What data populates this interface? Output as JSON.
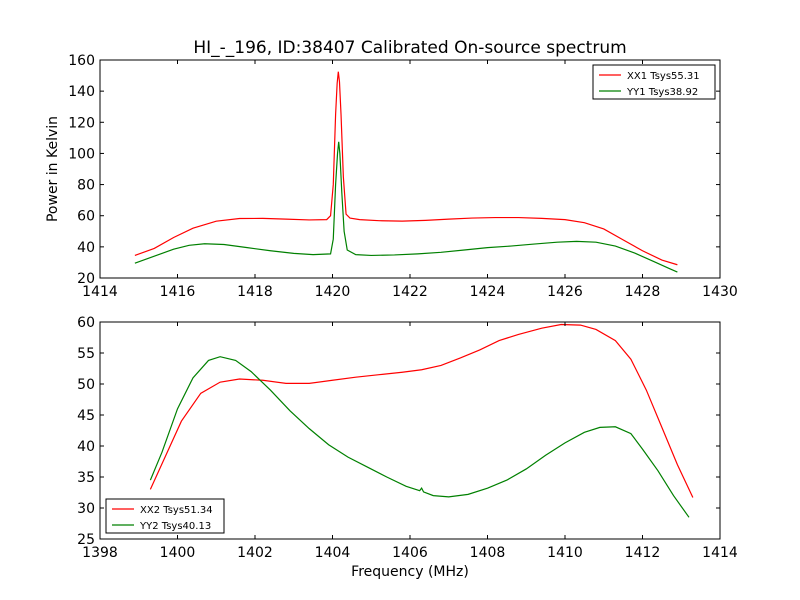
{
  "chart_data": [
    {
      "type": "line",
      "title": "HI_-_196, ID:38407 Calibrated On-source spectrum",
      "xlabel": "",
      "ylabel": "Power in Kelvin",
      "xlim": [
        1414,
        1430
      ],
      "ylim": [
        20,
        160
      ],
      "xticks": [
        1414,
        1416,
        1418,
        1420,
        1422,
        1424,
        1426,
        1428,
        1430
      ],
      "yticks": [
        20,
        40,
        60,
        80,
        100,
        120,
        140,
        160
      ],
      "legend_position": "top-right",
      "series": [
        {
          "name": "XX1 Tsys55.31",
          "color": "#ff0000",
          "points": [
            [
              1414.9,
              34.5
            ],
            [
              1415.4,
              39
            ],
            [
              1415.9,
              46
            ],
            [
              1416.4,
              52
            ],
            [
              1417.0,
              56.5
            ],
            [
              1417.6,
              58.2
            ],
            [
              1418.2,
              58.3
            ],
            [
              1418.8,
              57.8
            ],
            [
              1419.4,
              57.3
            ],
            [
              1419.85,
              57.5
            ],
            [
              1419.95,
              60
            ],
            [
              1420.02,
              80
            ],
            [
              1420.08,
              125
            ],
            [
              1420.12,
              145
            ],
            [
              1420.15,
              152.5
            ],
            [
              1420.18,
              146
            ],
            [
              1420.22,
              125
            ],
            [
              1420.28,
              85
            ],
            [
              1420.35,
              61
            ],
            [
              1420.45,
              58.5
            ],
            [
              1420.7,
              57.5
            ],
            [
              1421.2,
              56.8
            ],
            [
              1421.8,
              56.5
            ],
            [
              1422.4,
              57
            ],
            [
              1423.0,
              57.8
            ],
            [
              1423.6,
              58.5
            ],
            [
              1424.2,
              58.8
            ],
            [
              1424.8,
              58.8
            ],
            [
              1425.4,
              58.3
            ],
            [
              1426.0,
              57.5
            ],
            [
              1426.5,
              55.5
            ],
            [
              1427.0,
              51.5
            ],
            [
              1427.5,
              44.5
            ],
            [
              1428.0,
              37.5
            ],
            [
              1428.5,
              31.5
            ],
            [
              1428.9,
              28.5
            ]
          ]
        },
        {
          "name": "YY1 Tsys38.92",
          "color": "#008000",
          "points": [
            [
              1414.9,
              29.5
            ],
            [
              1415.4,
              34
            ],
            [
              1415.9,
              38.5
            ],
            [
              1416.3,
              41
            ],
            [
              1416.7,
              42
            ],
            [
              1417.2,
              41.5
            ],
            [
              1417.8,
              39.5
            ],
            [
              1418.4,
              37.5
            ],
            [
              1419.0,
              35.8
            ],
            [
              1419.5,
              35
            ],
            [
              1419.95,
              35.5
            ],
            [
              1420.02,
              45
            ],
            [
              1420.08,
              80
            ],
            [
              1420.13,
              100
            ],
            [
              1420.16,
              107.5
            ],
            [
              1420.19,
              100
            ],
            [
              1420.24,
              75
            ],
            [
              1420.3,
              50
            ],
            [
              1420.38,
              38
            ],
            [
              1420.6,
              35
            ],
            [
              1421.0,
              34.5
            ],
            [
              1421.6,
              34.8
            ],
            [
              1422.2,
              35.5
            ],
            [
              1422.8,
              36.5
            ],
            [
              1423.4,
              38
            ],
            [
              1424.0,
              39.5
            ],
            [
              1424.6,
              40.5
            ],
            [
              1425.2,
              41.8
            ],
            [
              1425.8,
              43
            ],
            [
              1426.3,
              43.5
            ],
            [
              1426.8,
              43
            ],
            [
              1427.3,
              40.5
            ],
            [
              1427.8,
              36
            ],
            [
              1428.3,
              30.5
            ],
            [
              1428.7,
              26
            ],
            [
              1428.9,
              23.8
            ]
          ]
        }
      ]
    },
    {
      "type": "line",
      "title": "",
      "xlabel": "Frequency (MHz)",
      "ylabel": "",
      "xlim": [
        1398,
        1414
      ],
      "ylim": [
        25,
        60
      ],
      "xticks": [
        1398,
        1400,
        1402,
        1404,
        1406,
        1408,
        1410,
        1412,
        1414
      ],
      "yticks": [
        25,
        30,
        35,
        40,
        45,
        50,
        55,
        60
      ],
      "legend_position": "bottom-left",
      "series": [
        {
          "name": "XX2 Tsys51.34",
          "color": "#ff0000",
          "points": [
            [
              1399.3,
              33
            ],
            [
              1399.7,
              38.5
            ],
            [
              1400.1,
              44
            ],
            [
              1400.6,
              48.5
            ],
            [
              1401.1,
              50.3
            ],
            [
              1401.6,
              50.8
            ],
            [
              1402.2,
              50.6
            ],
            [
              1402.8,
              50.1
            ],
            [
              1403.4,
              50.1
            ],
            [
              1404.0,
              50.6
            ],
            [
              1404.6,
              51.1
            ],
            [
              1405.2,
              51.5
            ],
            [
              1405.8,
              51.9
            ],
            [
              1406.3,
              52.3
            ],
            [
              1406.8,
              53
            ],
            [
              1407.3,
              54.2
            ],
            [
              1407.8,
              55.5
            ],
            [
              1408.3,
              57
            ],
            [
              1408.8,
              58
            ],
            [
              1409.4,
              59
            ],
            [
              1409.9,
              59.6
            ],
            [
              1410.4,
              59.5
            ],
            [
              1410.8,
              58.8
            ],
            [
              1411.3,
              57
            ],
            [
              1411.7,
              54
            ],
            [
              1412.1,
              49
            ],
            [
              1412.5,
              43
            ],
            [
              1412.9,
              37
            ],
            [
              1413.3,
              31.7
            ]
          ]
        },
        {
          "name": "YY2 Tsys40.13",
          "color": "#008000",
          "points": [
            [
              1399.3,
              34.5
            ],
            [
              1399.6,
              39
            ],
            [
              1400.0,
              46
            ],
            [
              1400.4,
              51
            ],
            [
              1400.8,
              53.8
            ],
            [
              1401.1,
              54.4
            ],
            [
              1401.5,
              53.8
            ],
            [
              1401.9,
              52
            ],
            [
              1402.4,
              49
            ],
            [
              1402.9,
              45.7
            ],
            [
              1403.4,
              42.8
            ],
            [
              1403.9,
              40.2
            ],
            [
              1404.4,
              38.2
            ],
            [
              1404.9,
              36.6
            ],
            [
              1405.4,
              35
            ],
            [
              1405.9,
              33.5
            ],
            [
              1406.25,
              32.8
            ],
            [
              1406.3,
              33.2
            ],
            [
              1406.35,
              32.6
            ],
            [
              1406.6,
              32
            ],
            [
              1407.0,
              31.8
            ],
            [
              1407.5,
              32.2
            ],
            [
              1408.0,
              33.2
            ],
            [
              1408.5,
              34.5
            ],
            [
              1409.0,
              36.3
            ],
            [
              1409.5,
              38.5
            ],
            [
              1410.0,
              40.5
            ],
            [
              1410.5,
              42.2
            ],
            [
              1410.9,
              43
            ],
            [
              1411.3,
              43.1
            ],
            [
              1411.7,
              42
            ],
            [
              1412.0,
              39.5
            ],
            [
              1412.4,
              36
            ],
            [
              1412.8,
              32
            ],
            [
              1413.2,
              28.5
            ]
          ]
        }
      ]
    }
  ]
}
